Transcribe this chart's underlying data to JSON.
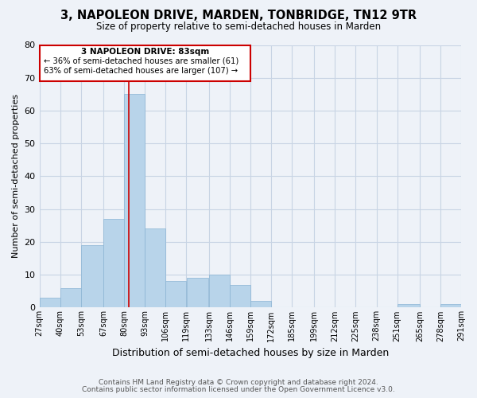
{
  "title": "3, NAPOLEON DRIVE, MARDEN, TONBRIDGE, TN12 9TR",
  "subtitle": "Size of property relative to semi-detached houses in Marden",
  "xlabel": "Distribution of semi-detached houses by size in Marden",
  "ylabel": "Number of semi-detached properties",
  "bar_color": "#b8d4ea",
  "bar_edge_color": "#8ab4d4",
  "grid_color": "#c8d4e4",
  "background_color": "#eef2f8",
  "marker_line_color": "#cc0000",
  "marker_value": 83,
  "annotation_title": "3 NAPOLEON DRIVE: 83sqm",
  "annotation_line1": "← 36% of semi-detached houses are smaller (61)",
  "annotation_line2": "63% of semi-detached houses are larger (107) →",
  "bin_edges": [
    27,
    40,
    53,
    67,
    80,
    93,
    106,
    119,
    133,
    146,
    159,
    172,
    185,
    199,
    212,
    225,
    238,
    251,
    265,
    278,
    291
  ],
  "bin_counts": [
    3,
    6,
    19,
    27,
    65,
    24,
    8,
    9,
    10,
    7,
    2,
    0,
    0,
    0,
    0,
    0,
    0,
    1,
    0,
    1
  ],
  "tick_labels": [
    "27sqm",
    "40sqm",
    "53sqm",
    "67sqm",
    "80sqm",
    "93sqm",
    "106sqm",
    "119sqm",
    "133sqm",
    "146sqm",
    "159sqm",
    "172sqm",
    "185sqm",
    "199sqm",
    "212sqm",
    "225sqm",
    "238sqm",
    "251sqm",
    "265sqm",
    "278sqm",
    "291sqm"
  ],
  "ylim": [
    0,
    80
  ],
  "yticks": [
    0,
    10,
    20,
    30,
    40,
    50,
    60,
    70,
    80
  ],
  "footnote1": "Contains HM Land Registry data © Crown copyright and database right 2024.",
  "footnote2": "Contains public sector information licensed under the Open Government Licence v3.0."
}
